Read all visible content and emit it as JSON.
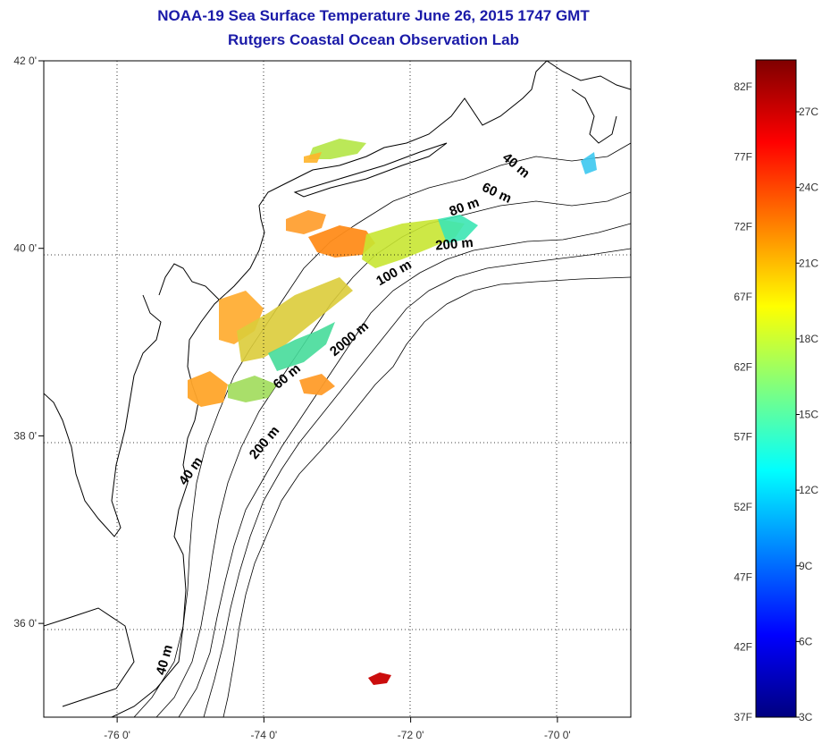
{
  "title": {
    "line1": "NOAA-19 Sea Surface Temperature June 26, 2015 1747 GMT",
    "line2": "Rutgers Coastal Ocean Observation Lab"
  },
  "map": {
    "lon_range": [
      -77,
      -69
    ],
    "lat_range": [
      35,
      42
    ],
    "lon_ticks": [
      {
        "value": -76,
        "label": "-76 0'"
      },
      {
        "value": -74,
        "label": "-74 0'"
      },
      {
        "value": -72,
        "label": "-72 0'"
      },
      {
        "value": -70,
        "label": "-70 0'"
      }
    ],
    "lat_ticks": [
      {
        "value": 42,
        "label": "42 0'"
      },
      {
        "value": 40,
        "label": "40 0'"
      },
      {
        "value": 38,
        "label": "38 0'"
      },
      {
        "value": 36,
        "label": "36 0'"
      }
    ],
    "grid": "dotted",
    "depth_labels": [
      {
        "text": "40 m",
        "lon": -70.6,
        "lat": 40.85,
        "rotate": 40
      },
      {
        "text": "60 m",
        "lon": -70.85,
        "lat": 40.55,
        "rotate": 25
      },
      {
        "text": "80 m",
        "lon": -71.25,
        "lat": 40.4,
        "rotate": -20
      },
      {
        "text": "200 m",
        "lon": -71.4,
        "lat": 40.0,
        "rotate": -5
      },
      {
        "text": "100 m",
        "lon": -72.2,
        "lat": 39.7,
        "rotate": -30
      },
      {
        "text": "2000 m",
        "lon": -72.8,
        "lat": 39.0,
        "rotate": -40
      },
      {
        "text": "60 m",
        "lon": -73.65,
        "lat": 38.6,
        "rotate": -40
      },
      {
        "text": "200 m",
        "lon": -73.95,
        "lat": 37.9,
        "rotate": -50
      },
      {
        "text": "40 m",
        "lon": -74.95,
        "lat": 37.6,
        "rotate": -55
      },
      {
        "text": "40 m",
        "lon": -75.3,
        "lat": 35.6,
        "rotate": -75
      }
    ]
  },
  "colorbar": {
    "colormap": [
      "#00007f",
      "#0000ff",
      "#007fff",
      "#00ffff",
      "#7fff7f",
      "#ffff00",
      "#ff7f00",
      "#ff0000",
      "#7f0000"
    ],
    "fahrenheit_labels": [
      "82F",
      "77F",
      "72F",
      "67F",
      "62F",
      "57F",
      "52F",
      "47F",
      "42F",
      "37F"
    ],
    "celsius_labels": [
      "27C",
      "24C",
      "21C",
      "18C",
      "15C",
      "12C",
      "9C",
      "6C",
      "3C"
    ]
  }
}
